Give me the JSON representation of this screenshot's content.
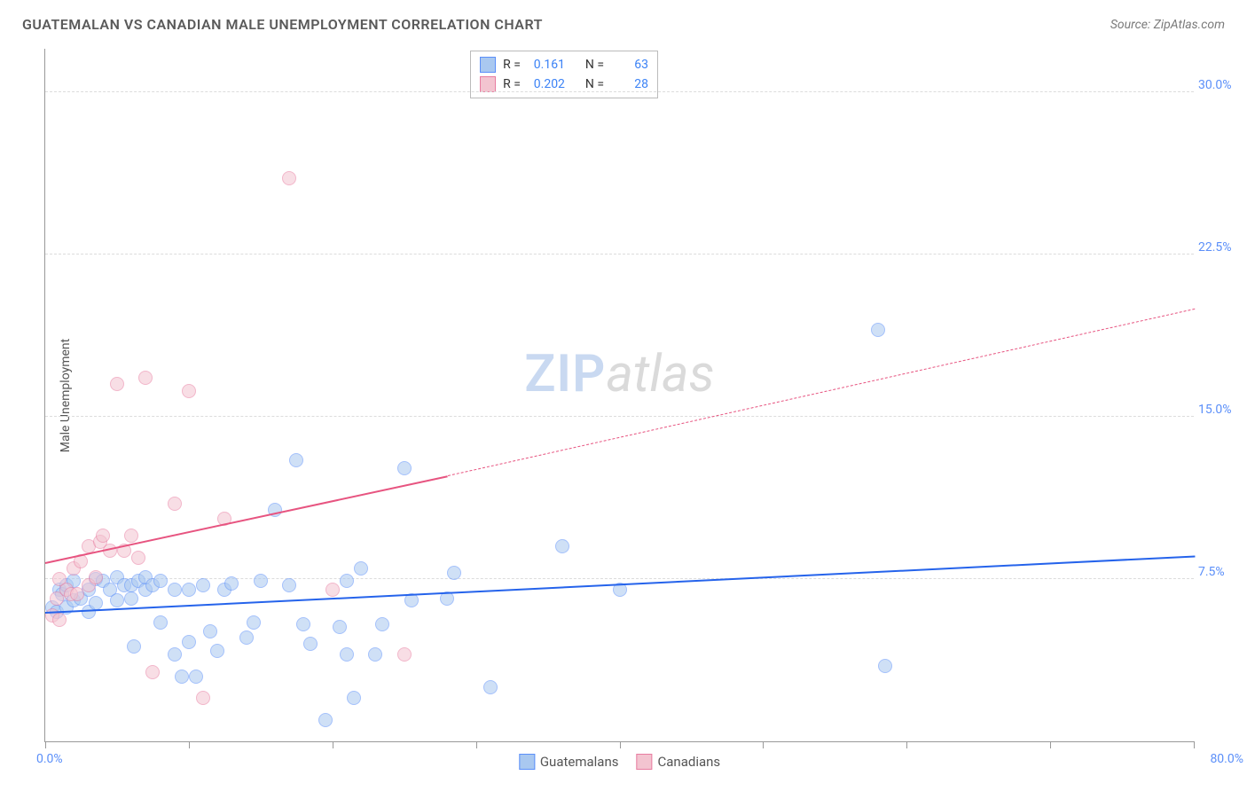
{
  "title": "GUATEMALAN VS CANADIAN MALE UNEMPLOYMENT CORRELATION CHART",
  "source_label": "Source: ZipAtlas.com",
  "y_axis_label": "Male Unemployment",
  "watermark": {
    "zip": "ZIP",
    "atlas": "atlas"
  },
  "chart": {
    "type": "scatter",
    "xlim": [
      0,
      80
    ],
    "ylim": [
      0,
      32
    ],
    "x_ticks": [
      0,
      10,
      20,
      30,
      40,
      50,
      60,
      70,
      80
    ],
    "y_gridlines": [
      7.5,
      15.0,
      22.5,
      30.0
    ],
    "y_tick_labels": [
      "7.5%",
      "15.0%",
      "22.5%",
      "30.0%"
    ],
    "x_min_label": "0.0%",
    "x_max_label": "80.0%",
    "background_color": "#ffffff",
    "grid_color": "#dcdcdc",
    "axis_color": "#999999",
    "axis_label_color": "#5b8ff9",
    "point_radius": 8,
    "point_opacity": 0.55,
    "series": [
      {
        "name": "Guatemalans",
        "color_fill": "#a9c8f0",
        "color_stroke": "#5b8ff9",
        "r_value": "0.161",
        "n_value": "63",
        "trend": {
          "x0": 0,
          "y0": 6.0,
          "x1": 80,
          "y1": 8.6,
          "color": "#2563eb",
          "width": 2.2,
          "dashed": false
        },
        "points": [
          [
            0.5,
            6.2
          ],
          [
            0.8,
            6.0
          ],
          [
            1.0,
            7.0
          ],
          [
            1.2,
            6.8
          ],
          [
            1.5,
            6.2
          ],
          [
            1.5,
            7.2
          ],
          [
            2.0,
            6.5
          ],
          [
            2.0,
            7.4
          ],
          [
            2.5,
            6.6
          ],
          [
            3.0,
            7.0
          ],
          [
            3.0,
            6.0
          ],
          [
            3.5,
            7.5
          ],
          [
            3.5,
            6.4
          ],
          [
            4.0,
            7.4
          ],
          [
            4.5,
            7.0
          ],
          [
            5.0,
            6.5
          ],
          [
            5.0,
            7.6
          ],
          [
            5.5,
            7.2
          ],
          [
            6.0,
            6.6
          ],
          [
            6.0,
            7.2
          ],
          [
            6.2,
            4.4
          ],
          [
            6.5,
            7.4
          ],
          [
            7.0,
            7.0
          ],
          [
            7.0,
            7.6
          ],
          [
            7.5,
            7.2
          ],
          [
            8.0,
            7.4
          ],
          [
            8.0,
            5.5
          ],
          [
            9.0,
            7.0
          ],
          [
            9.0,
            4.0
          ],
          [
            9.5,
            3.0
          ],
          [
            10.0,
            7.0
          ],
          [
            10.0,
            4.6
          ],
          [
            10.5,
            3.0
          ],
          [
            11.0,
            7.2
          ],
          [
            11.5,
            5.1
          ],
          [
            12.0,
            4.2
          ],
          [
            12.5,
            7.0
          ],
          [
            13.0,
            7.3
          ],
          [
            14.0,
            4.8
          ],
          [
            14.5,
            5.5
          ],
          [
            15.0,
            7.4
          ],
          [
            16.0,
            10.7
          ],
          [
            17.0,
            7.2
          ],
          [
            17.5,
            13.0
          ],
          [
            18.0,
            5.4
          ],
          [
            18.5,
            4.5
          ],
          [
            19.5,
            1.0
          ],
          [
            20.5,
            5.3
          ],
          [
            21.0,
            4.0
          ],
          [
            21.0,
            7.4
          ],
          [
            21.5,
            2.0
          ],
          [
            22.0,
            8.0
          ],
          [
            23.0,
            4.0
          ],
          [
            23.5,
            5.4
          ],
          [
            25.0,
            12.6
          ],
          [
            25.5,
            6.5
          ],
          [
            28.0,
            6.6
          ],
          [
            28.5,
            7.8
          ],
          [
            31.0,
            2.5
          ],
          [
            36.0,
            9.0
          ],
          [
            40.0,
            7.0
          ],
          [
            58.0,
            19.0
          ],
          [
            58.5,
            3.5
          ]
        ]
      },
      {
        "name": "Canadians",
        "color_fill": "#f3c4d0",
        "color_stroke": "#e87ca0",
        "r_value": "0.202",
        "n_value": "28",
        "trend_solid": {
          "x0": 0,
          "y0": 8.3,
          "x1": 28,
          "y1": 12.3,
          "color": "#e75480",
          "width": 2.2
        },
        "trend_dashed": {
          "x0": 28,
          "y0": 12.3,
          "x1": 80,
          "y1": 20.0,
          "color": "#e75480",
          "width": 1.5
        },
        "points": [
          [
            0.5,
            5.8
          ],
          [
            0.8,
            6.6
          ],
          [
            1.0,
            7.5
          ],
          [
            1.0,
            5.6
          ],
          [
            1.5,
            7.0
          ],
          [
            1.8,
            6.8
          ],
          [
            2.0,
            8.0
          ],
          [
            2.2,
            6.8
          ],
          [
            2.5,
            8.3
          ],
          [
            3.0,
            9.0
          ],
          [
            3.0,
            7.2
          ],
          [
            3.5,
            7.6
          ],
          [
            3.8,
            9.2
          ],
          [
            4.0,
            9.5
          ],
          [
            4.5,
            8.8
          ],
          [
            5.0,
            16.5
          ],
          [
            5.5,
            8.8
          ],
          [
            6.0,
            9.5
          ],
          [
            6.5,
            8.5
          ],
          [
            7.0,
            16.8
          ],
          [
            7.5,
            3.2
          ],
          [
            9.0,
            11.0
          ],
          [
            10.0,
            16.2
          ],
          [
            11.0,
            2.0
          ],
          [
            12.5,
            10.3
          ],
          [
            17.0,
            26.0
          ],
          [
            20.0,
            7.0
          ],
          [
            25.0,
            4.0
          ]
        ]
      }
    ]
  },
  "stats_box": {
    "r_label": "R = ",
    "n_label": "N = "
  },
  "legend": {
    "items": [
      "Guatemalans",
      "Canadians"
    ]
  }
}
